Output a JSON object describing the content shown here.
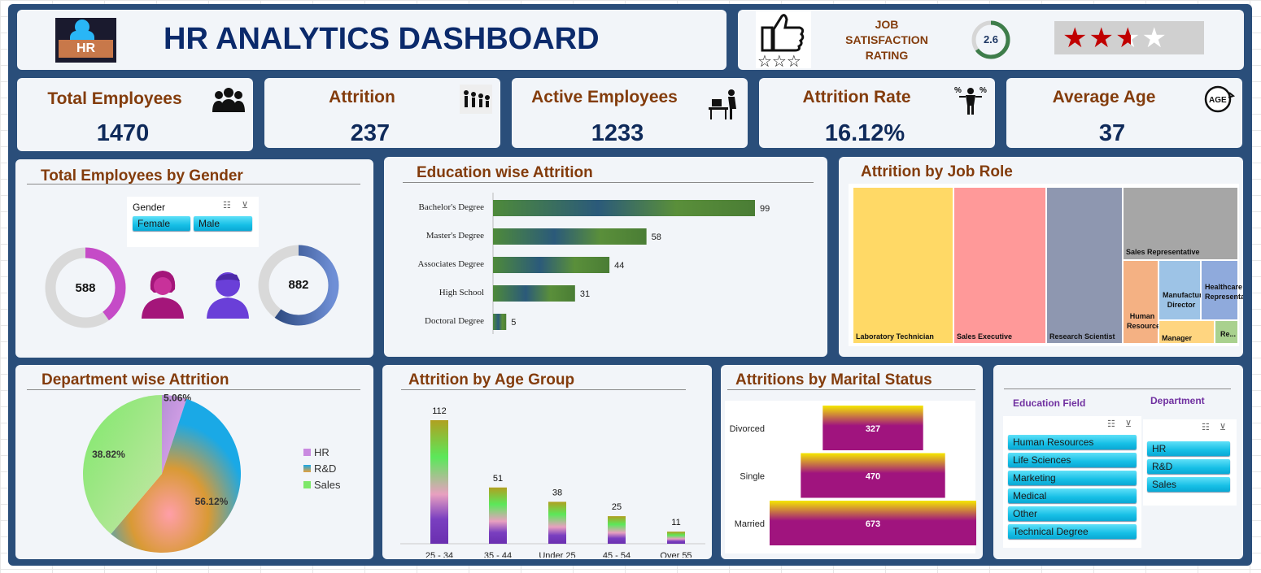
{
  "header": {
    "title": "HR ANALYTICS DASHBOARD",
    "logo_text": "HR"
  },
  "satisfaction": {
    "label_lines": [
      "JOB",
      "SATISFACTION",
      "RATING"
    ],
    "rating": "2.6",
    "rating_value": 2.6,
    "stars_filled": 2.6,
    "stars_max": 4,
    "accent": "#c00000"
  },
  "kpis": [
    {
      "title": "Total Employees",
      "value": "1470",
      "icon": "people-group-icon"
    },
    {
      "title": "Attrition",
      "value": "237",
      "icon": "people-leaving-icon"
    },
    {
      "title": "Active Employees",
      "value": "1233",
      "icon": "person-at-desk-icon"
    },
    {
      "title": "Attrition Rate",
      "value": "16.12%",
      "icon": "person-percent-icon"
    },
    {
      "title": "Average Age",
      "value": "37",
      "icon": "age-icon"
    }
  ],
  "gender": {
    "title": "Total Employees by Gender",
    "slicer_header": "Gender",
    "options": [
      "Female",
      "Male"
    ],
    "female_value": "588",
    "male_value": "882",
    "female_share": 0.4,
    "male_share": 0.6,
    "female_color": "#c54bc7",
    "male_color": "#1f3b6e"
  },
  "education_attrition": {
    "title": "Education wise Attrition",
    "chart_data": {
      "type": "bar",
      "orientation": "horizontal",
      "categories": [
        "Bachelor's Degree",
        "Master's Degree",
        "Associates Degree",
        "High School",
        "Doctoral Degree"
      ],
      "values": [
        99,
        58,
        44,
        31,
        5
      ]
    }
  },
  "job_role": {
    "title": "Attrition by Job Role",
    "chart_data": {
      "type": "treemap",
      "labels": [
        "Laboratory Technician",
        "Sales Executive",
        "Research Scientist",
        "Sales Representative",
        "Human Resources",
        "Manufacturing Director",
        "Healthcare Representative",
        "Manager",
        "Re..."
      ],
      "colors": [
        "#ffd966",
        "#ff9999",
        "#8e97b0",
        "#a6a6a6",
        "#f4b183",
        "#9dc3e6",
        "#8faadc",
        "#ffd580",
        "#a9d18e"
      ]
    }
  },
  "department_attrition": {
    "title": "Department wise Attrition",
    "chart_data": {
      "type": "pie",
      "labels": [
        "HR",
        "R&D",
        "Sales"
      ],
      "values": [
        5.06,
        56.12,
        38.82
      ],
      "value_labels": [
        "5.06%",
        "56.12%",
        "38.82%"
      ]
    }
  },
  "age_group": {
    "title": "Attrition by Age Group",
    "chart_data": {
      "type": "bar",
      "categories": [
        "25 - 34",
        "35 - 44",
        "Under 25",
        "45 - 54",
        "Over 55"
      ],
      "values": [
        112,
        51,
        38,
        25,
        11
      ]
    }
  },
  "marital": {
    "title": "Attritions  by Marital Status",
    "chart_data": {
      "type": "bar",
      "orientation": "horizontal",
      "centered": true,
      "categories": [
        "Divorced",
        "Single",
        "Married"
      ],
      "values": [
        327,
        470,
        673
      ]
    }
  },
  "filters": {
    "education_field": {
      "header": "Education Field",
      "options": [
        "Human Resources",
        "Life Sciences",
        "Marketing",
        "Medical",
        "Other",
        "Technical Degree"
      ]
    },
    "department": {
      "header": "Department",
      "options": [
        "HR",
        "R&D",
        "Sales"
      ]
    }
  }
}
